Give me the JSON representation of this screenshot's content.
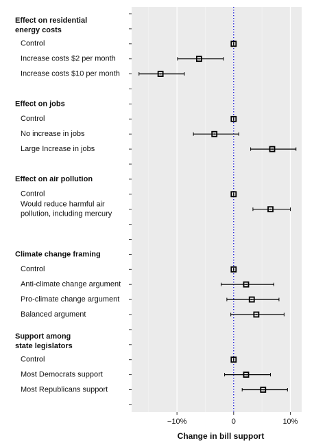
{
  "chart_data": {
    "type": "coefficient",
    "xlabel": "Change in bill support",
    "categories": [
      null,
      "Effect on residential\nenergy costs",
      "Control",
      "Increase costs $2 per month",
      "Increase costs $10 per month",
      null,
      "Effect on jobs",
      "Control",
      "No increase in jobs",
      "Large Increase in jobs",
      null,
      "Effect on air pollution",
      "Control",
      "Would reduce harmful air\npollution, including mercury",
      null,
      null,
      "Climate change framing",
      "Control",
      "Anti-climate change argument",
      "Pro-climate change argument",
      "Balanced argument",
      null,
      "Support among\nstate legislators",
      "Control",
      "Most Democrats support",
      "Most Republicans support",
      null
    ],
    "values": [
      null,
      null,
      0,
      -6.1,
      -12.9,
      null,
      null,
      0,
      -3.4,
      6.8,
      null,
      null,
      0,
      6.5,
      null,
      null,
      null,
      0,
      2.2,
      3.2,
      4.0,
      null,
      null,
      0,
      2.2,
      5.2,
      null
    ],
    "ci_low": [
      null,
      null,
      0,
      -9.9,
      -16.7,
      null,
      null,
      0,
      -7.1,
      3.0,
      null,
      null,
      0,
      3.4,
      null,
      null,
      null,
      0,
      -2.2,
      -1.2,
      -0.5,
      null,
      null,
      0,
      -1.6,
      1.5,
      null
    ],
    "ci_high": [
      null,
      null,
      0,
      -1.8,
      -8.7,
      null,
      null,
      0,
      0.9,
      11.0,
      null,
      null,
      0,
      10.0,
      null,
      null,
      null,
      0,
      7.1,
      8.0,
      8.9,
      null,
      null,
      0,
      6.5,
      9.5,
      null
    ],
    "xlim": [
      -18,
      12
    ],
    "xticks": [
      {
        "value": -10,
        "label": "−10%"
      },
      0,
      {
        "value": 10,
        "label": "10%"
      }
    ],
    "xminor_ticks": [
      -15,
      -5,
      5
    ],
    "grid": true,
    "color": "#000000",
    "reference_color": "#0000cc"
  }
}
